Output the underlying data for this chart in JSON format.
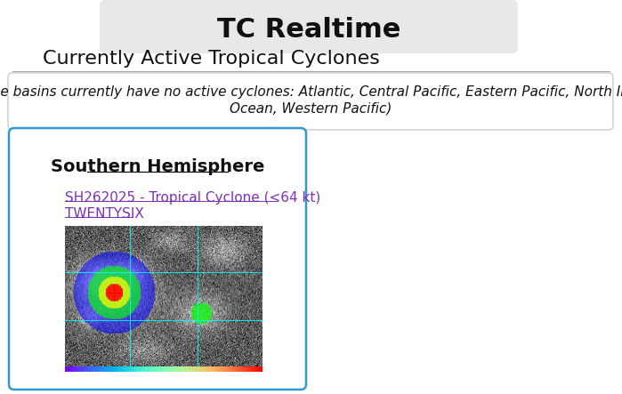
{
  "bg_color": "#ffffff",
  "title_box_color": "#e8e8e8",
  "title_text": "TC Realtime",
  "title_fontsize": 22,
  "subtitle_text": "Currently Active Tropical Cyclones",
  "subtitle_fontsize": 16,
  "inactive_line1": "(These basins currently have no active cyclones: Atlantic, Central Pacific, Eastern Pacific, North Indian",
  "inactive_line2": "Ocean, Western Pacific)",
  "inactive_fontsize": 11,
  "inactive_box_color": "#ffffff",
  "inactive_box_border": "#cccccc",
  "section_title": "Southern Hemisphere",
  "section_fontsize": 14,
  "link_line1": "SH262025 - Tropical Cyclone (<64 kt)",
  "link_line2": "TWENTYSIX",
  "link_color": "#7b2fbe",
  "link_fontsize": 11,
  "card_border_color": "#3399cc",
  "card_bg": "#ffffff",
  "divider_color": "#aaaaaa",
  "image_placeholder_color": "#404040"
}
